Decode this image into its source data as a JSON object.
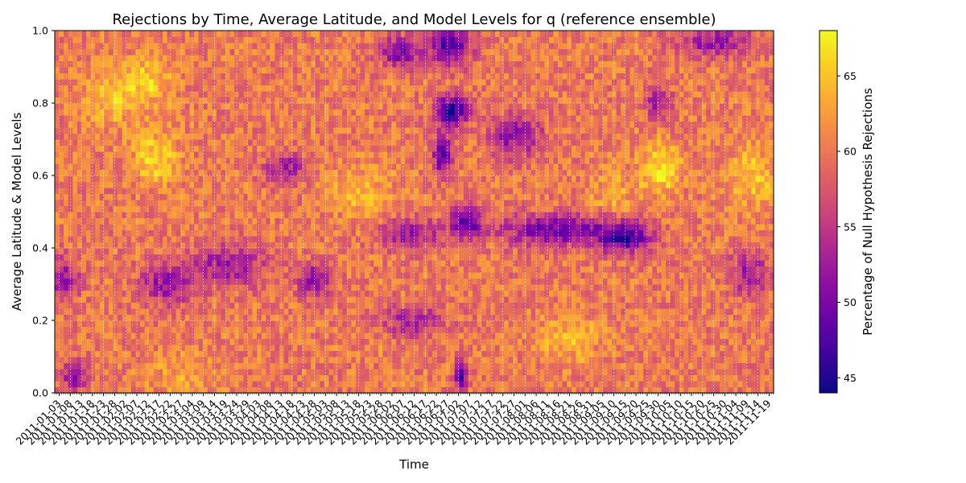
{
  "chart_data": {
    "type": "heatmap",
    "title": "Rejections by Time, Average Latitude, and Model Levels for q (reference ensemble)",
    "xlabel": "Time",
    "ylabel": "Average Latitude & Model Levels",
    "colorbar_label": "Percentage of Null Hypothesis Rejections",
    "colormap": "plasma",
    "ylim": [
      0,
      1
    ],
    "y_ticks": [
      "0.0",
      "0.2",
      "0.4",
      "0.6",
      "0.8",
      "1.0"
    ],
    "color_range": [
      44,
      68
    ],
    "colorbar_ticks": [
      "45",
      "50",
      "55",
      "60",
      "65"
    ],
    "x_range": [
      "2011-01-01",
      "2011-11-21"
    ],
    "x_ticks": [
      "2011-01-03",
      "2011-01-08",
      "2011-01-13",
      "2011-01-18",
      "2011-01-23",
      "2011-01-28",
      "2011-02-02",
      "2011-02-07",
      "2011-02-12",
      "2011-02-17",
      "2011-02-22",
      "2011-02-27",
      "2011-03-04",
      "2011-03-09",
      "2011-03-14",
      "2011-03-19",
      "2011-03-24",
      "2011-03-29",
      "2011-04-03",
      "2011-04-08",
      "2011-04-13",
      "2011-04-18",
      "2011-04-23",
      "2011-04-28",
      "2011-05-03",
      "2011-05-08",
      "2011-05-13",
      "2011-05-18",
      "2011-05-23",
      "2011-05-28",
      "2011-06-02",
      "2011-06-07",
      "2011-06-12",
      "2011-06-17",
      "2011-06-22",
      "2011-06-27",
      "2011-07-02",
      "2011-07-07",
      "2011-07-12",
      "2011-07-17",
      "2011-07-22",
      "2011-07-27",
      "2011-08-01",
      "2011-08-06",
      "2011-08-11",
      "2011-08-16",
      "2011-08-21",
      "2011-08-26",
      "2011-08-31",
      "2011-09-05",
      "2011-09-10",
      "2011-09-15",
      "2011-09-20",
      "2011-09-25",
      "2011-09-30",
      "2011-10-05",
      "2011-10-10",
      "2011-10-15",
      "2011-10-20",
      "2011-10-25",
      "2011-10-30",
      "2011-11-04",
      "2011-11-09",
      "2011-11-14",
      "2011-11-19"
    ],
    "background_value": 60,
    "features": [
      {
        "x": "2011-01-10",
        "y": 0.05,
        "value": 51,
        "spread_days": 4,
        "spread_y": 0.03
      },
      {
        "x": "2011-01-05",
        "y": 0.32,
        "value": 52,
        "spread_days": 5,
        "spread_y": 0.04
      },
      {
        "x": "2011-01-25",
        "y": 0.82,
        "value": 65,
        "spread_days": 8,
        "spread_y": 0.06
      },
      {
        "x": "2011-02-12",
        "y": 0.86,
        "value": 65,
        "spread_days": 8,
        "spread_y": 0.05
      },
      {
        "x": "2011-02-15",
        "y": 0.65,
        "value": 66,
        "spread_days": 7,
        "spread_y": 0.05
      },
      {
        "x": "2011-02-20",
        "y": 0.3,
        "value": 52,
        "spread_days": 8,
        "spread_y": 0.04
      },
      {
        "x": "2011-03-20",
        "y": 0.35,
        "value": 52,
        "spread_days": 12,
        "spread_y": 0.04
      },
      {
        "x": "2011-04-15",
        "y": 0.62,
        "value": 52,
        "spread_days": 6,
        "spread_y": 0.03
      },
      {
        "x": "2011-04-28",
        "y": 0.31,
        "value": 50,
        "spread_days": 5,
        "spread_y": 0.03
      },
      {
        "x": "2011-05-20",
        "y": 0.55,
        "value": 64,
        "spread_days": 10,
        "spread_y": 0.05
      },
      {
        "x": "2011-06-05",
        "y": 0.94,
        "value": 50,
        "spread_days": 6,
        "spread_y": 0.03
      },
      {
        "x": "2011-06-10",
        "y": 0.44,
        "value": 52,
        "spread_days": 10,
        "spread_y": 0.03
      },
      {
        "x": "2011-06-12",
        "y": 0.2,
        "value": 53,
        "spread_days": 10,
        "spread_y": 0.03
      },
      {
        "x": "2011-06-28",
        "y": 0.96,
        "value": 48,
        "spread_days": 7,
        "spread_y": 0.04
      },
      {
        "x": "2011-06-29",
        "y": 0.78,
        "value": 45,
        "spread_days": 5,
        "spread_y": 0.03
      },
      {
        "x": "2011-06-25",
        "y": 0.66,
        "value": 47,
        "spread_days": 3,
        "spread_y": 0.04
      },
      {
        "x": "2011-07-05",
        "y": 0.47,
        "value": 48,
        "spread_days": 5,
        "spread_y": 0.03
      },
      {
        "x": "2011-07-03",
        "y": 0.05,
        "value": 46,
        "spread_days": 2,
        "spread_y": 0.03
      },
      {
        "x": "2011-07-28",
        "y": 0.71,
        "value": 51,
        "spread_days": 8,
        "spread_y": 0.04
      },
      {
        "x": "2011-08-15",
        "y": 0.45,
        "value": 49,
        "spread_days": 18,
        "spread_y": 0.03
      },
      {
        "x": "2011-09-15",
        "y": 0.43,
        "value": 47,
        "spread_days": 8,
        "spread_y": 0.03
      },
      {
        "x": "2011-09-10",
        "y": 0.55,
        "value": 63,
        "spread_days": 8,
        "spread_y": 0.05
      },
      {
        "x": "2011-10-01",
        "y": 0.62,
        "value": 67,
        "spread_days": 6,
        "spread_y": 0.05
      },
      {
        "x": "2011-09-30",
        "y": 0.8,
        "value": 52,
        "spread_days": 4,
        "spread_y": 0.03
      },
      {
        "x": "2011-10-25",
        "y": 0.97,
        "value": 52,
        "spread_days": 12,
        "spread_y": 0.03
      },
      {
        "x": "2011-11-12",
        "y": 0.6,
        "value": 65,
        "spread_days": 8,
        "spread_y": 0.06
      },
      {
        "x": "2011-11-10",
        "y": 0.33,
        "value": 52,
        "spread_days": 6,
        "spread_y": 0.04
      },
      {
        "x": "2011-08-20",
        "y": 0.15,
        "value": 64,
        "spread_days": 10,
        "spread_y": 0.05
      },
      {
        "x": "2011-03-01",
        "y": 0.05,
        "value": 63,
        "spread_days": 12,
        "spread_y": 0.04
      }
    ]
  }
}
